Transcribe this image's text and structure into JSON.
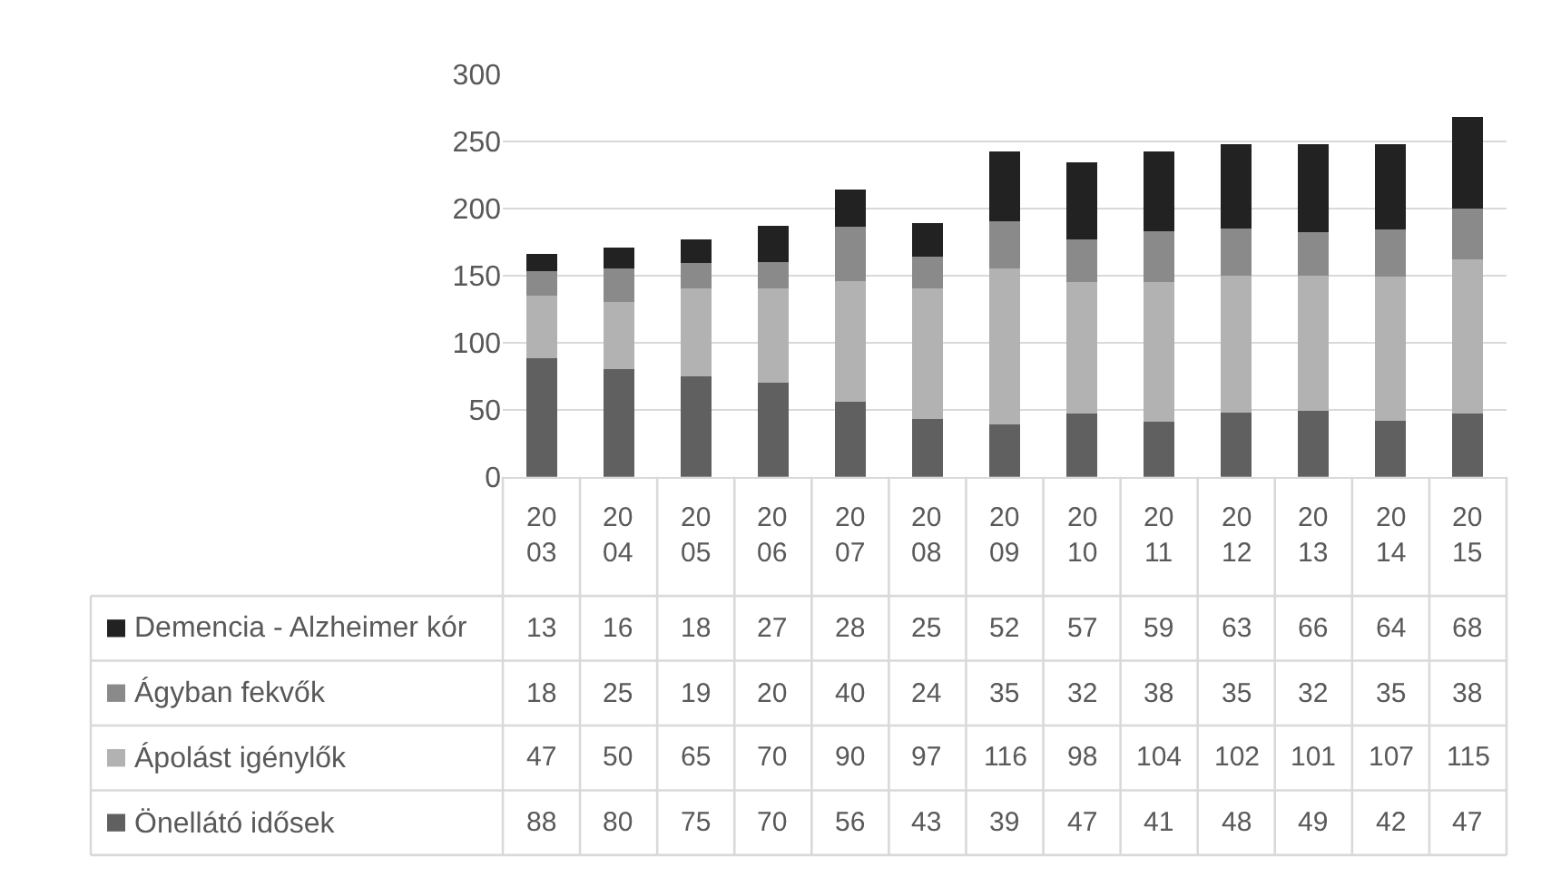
{
  "chart_data": {
    "type": "bar",
    "stacked": true,
    "categories": [
      "2003",
      "2004",
      "2005",
      "2006",
      "2007",
      "2008",
      "2009",
      "2010",
      "2011",
      "2012",
      "2013",
      "2014",
      "2015"
    ],
    "series": [
      {
        "name": "Önellátó idősek",
        "color": "#606060",
        "values": [
          88,
          80,
          75,
          70,
          56,
          43,
          39,
          47,
          41,
          48,
          49,
          42,
          47
        ]
      },
      {
        "name": "Ápolást igénylők",
        "color": "#b2b2b2",
        "values": [
          47,
          50,
          65,
          70,
          90,
          97,
          116,
          98,
          104,
          102,
          101,
          107,
          115
        ]
      },
      {
        "name": "Ágyban fekvők",
        "color": "#8a8a8a",
        "values": [
          18,
          25,
          19,
          20,
          40,
          24,
          35,
          32,
          38,
          35,
          32,
          35,
          38
        ]
      },
      {
        "name": "Demencia - Alzheimer kór",
        "color": "#222222",
        "values": [
          13,
          16,
          18,
          27,
          28,
          25,
          52,
          57,
          59,
          63,
          66,
          64,
          68
        ]
      }
    ],
    "ylim": [
      0,
      300
    ],
    "yticks": [
      0,
      50,
      100,
      150,
      200,
      250,
      300
    ],
    "grid": "y",
    "legend": "bottom left",
    "data_labels": true
  }
}
